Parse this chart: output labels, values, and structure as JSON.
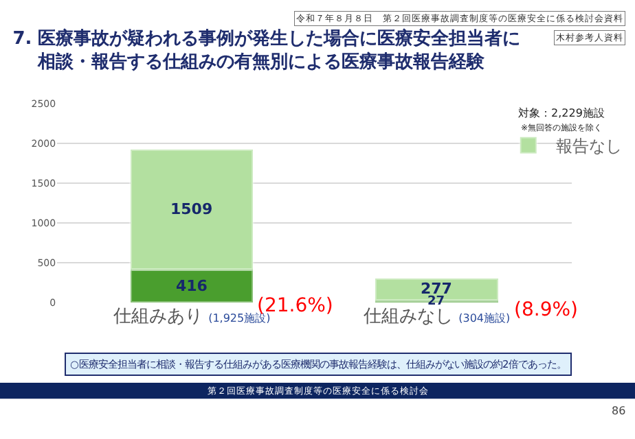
{
  "chart_data": {
    "type": "bar",
    "stacked": true,
    "title": "7. 医療事故が疑われる事例が発生した場合に医療安全担当者に相談・報告する仕組みの有無別による医療事故報告経験",
    "categories": [
      "仕組みあり (1,925施設)",
      "仕組みなし (304施設)"
    ],
    "series": [
      {
        "color": "#4a9e2e",
        "values": [
          416,
          27
        ]
      },
      {
        "name": "報告なし",
        "color": "#b3e0a0",
        "values": [
          1509,
          277
        ]
      }
    ],
    "data_labels": true,
    "ylim": [
      0,
      2500
    ],
    "yticks": [
      0,
      500,
      1000,
      1500,
      2000,
      2500
    ],
    "grid": "y",
    "legend": "top right",
    "annotations": [
      "令和７年８月８日　第２回医療事故調査制度等の医療安全に係る検討会資料",
      "木村参考人資料",
      "対象：2,229施設",
      "※無回答の施設を除く",
      "○医療安全担当者に相談・報告する仕組みがある医療機関の事故報告経験は、仕組みがない施設の約2倍であった。",
      "第２回医療事故調査制度等の医療安全に係る検討会",
      "86",
      "(21.6%)",
      "(8.9%)"
    ]
  }
}
